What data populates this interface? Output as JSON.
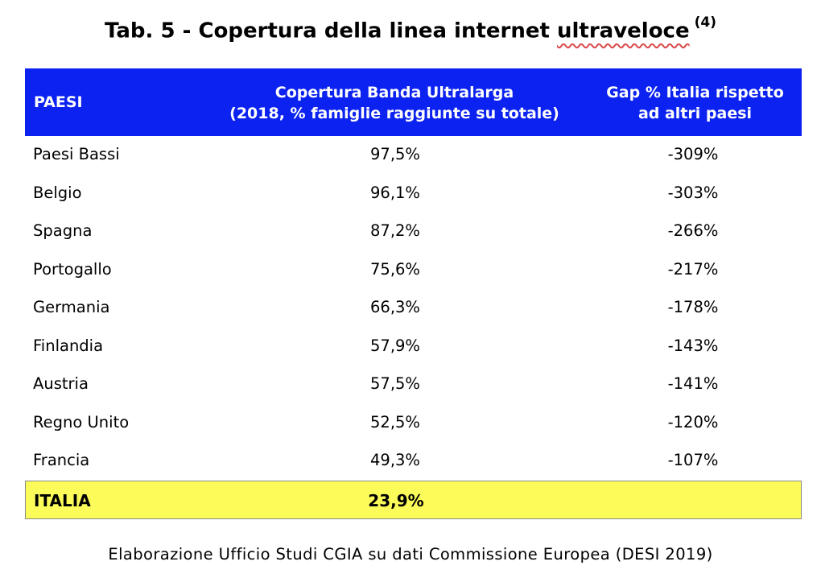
{
  "title": {
    "prefix": "Tab. 5 - Copertura della linea internet ",
    "underlined_word": "ultraveloce",
    "note": "(4)"
  },
  "header": {
    "col1": "PAESI",
    "col2_line1": "Copertura Banda Ultralarga",
    "col2_line2": "(2018, % famiglie raggiunte su totale)",
    "col3_line1": "Gap % Italia rispetto",
    "col3_line2": "ad altri paesi"
  },
  "rows": [
    {
      "country": "Paesi Bassi",
      "coverage": "97,5%",
      "gap": "-309%"
    },
    {
      "country": "Belgio",
      "coverage": "96,1%",
      "gap": "-303%"
    },
    {
      "country": "Spagna",
      "coverage": "87,2%",
      "gap": "-266%"
    },
    {
      "country": "Portogallo",
      "coverage": "75,6%",
      "gap": "-217%"
    },
    {
      "country": "Germania",
      "coverage": "66,3%",
      "gap": "-178%"
    },
    {
      "country": "Finlandia",
      "coverage": "57,9%",
      "gap": "-143%"
    },
    {
      "country": "Austria",
      "coverage": "57,5%",
      "gap": "-141%"
    },
    {
      "country": "Regno Unito",
      "coverage": "52,5%",
      "gap": "-120%"
    },
    {
      "country": "Francia",
      "coverage": "49,3%",
      "gap": "-107%"
    }
  ],
  "highlight": {
    "country": "ITALIA",
    "coverage": "23,9%"
  },
  "source": "Elaborazione Ufficio Studi CGIA su dati Commissione Europea (DESI 2019)",
  "colors": {
    "header_bg": "#0b22f0",
    "header_text": "#ffffff",
    "highlight_bg": "#fbfb5a"
  }
}
